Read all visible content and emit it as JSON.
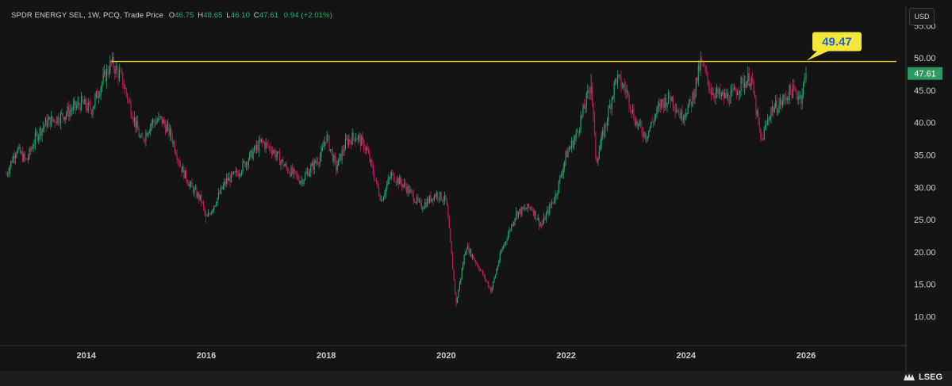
{
  "header": {
    "name": "SPDR ENERGY SEL, 1W, PCQ, Trade Price",
    "open_label": "O",
    "open": "46.75",
    "high_label": "H",
    "high": "48.65",
    "low_label": "L",
    "low": "46.10",
    "close_label": "C",
    "close": "47.61",
    "change": "0.94 (+2.01%)"
  },
  "currency_button": "USD",
  "logo": {
    "name": "LSEG"
  },
  "colors": {
    "up": "#26a269",
    "down": "#c2185b",
    "resistance": "#e8c51f",
    "callout_bg": "#f5e63a",
    "callout_text": "#1f5fd6",
    "last_price_bg": "#2f9a5f"
  },
  "chart_data": {
    "type": "candlestick",
    "interval": "1W",
    "ylim": [
      5.5,
      58
    ],
    "xlim": [
      "2012-09",
      "2027-09"
    ],
    "yticks": [
      "10.00",
      "15.00",
      "20.00",
      "25.00",
      "30.00",
      "35.00",
      "40.00",
      "45.00",
      "50.00",
      "55.00"
    ],
    "xticks": [
      "2014",
      "2016",
      "2018",
      "2020",
      "2022",
      "2024",
      "2026"
    ],
    "resistance": {
      "value": 49.47,
      "label": "49.47",
      "from": "2014-06",
      "to": "2027-09"
    },
    "last_price": {
      "value": 47.61,
      "label": "47.61"
    },
    "grid": false,
    "path": [
      [
        "2012-09",
        32
      ],
      [
        "2012-11",
        36
      ],
      [
        "2013-01",
        34
      ],
      [
        "2013-03",
        38
      ],
      [
        "2013-05",
        40
      ],
      [
        "2013-08",
        41
      ],
      [
        "2013-10",
        42
      ],
      [
        "2013-12",
        43
      ],
      [
        "2014-02",
        42
      ],
      [
        "2014-04",
        46
      ],
      [
        "2014-06",
        49.3
      ],
      [
        "2014-08",
        47
      ],
      [
        "2014-10",
        42
      ],
      [
        "2014-12",
        37
      ],
      [
        "2015-02",
        40
      ],
      [
        "2015-04",
        40.5
      ],
      [
        "2015-06",
        38
      ],
      [
        "2015-08",
        33
      ],
      [
        "2015-10",
        30
      ],
      [
        "2015-12",
        28
      ],
      [
        "2016-01",
        25
      ],
      [
        "2016-03",
        28
      ],
      [
        "2016-05",
        31
      ],
      [
        "2016-07",
        32
      ],
      [
        "2016-09",
        34
      ],
      [
        "2016-12",
        37
      ],
      [
        "2017-02",
        36
      ],
      [
        "2017-05",
        33
      ],
      [
        "2017-08",
        31
      ],
      [
        "2017-10",
        33
      ],
      [
        "2017-12",
        35
      ],
      [
        "2018-01",
        38
      ],
      [
        "2018-03",
        33
      ],
      [
        "2018-05",
        37
      ],
      [
        "2018-07",
        38
      ],
      [
        "2018-09",
        36
      ],
      [
        "2018-12",
        28
      ],
      [
        "2019-02",
        32
      ],
      [
        "2019-05",
        30
      ],
      [
        "2019-08",
        27
      ],
      [
        "2019-11",
        29
      ],
      [
        "2020-01",
        28
      ],
      [
        "2020-03",
        12
      ],
      [
        "2020-05",
        21
      ],
      [
        "2020-08",
        17
      ],
      [
        "2020-10",
        14
      ],
      [
        "2020-12",
        20
      ],
      [
        "2021-03",
        26
      ],
      [
        "2021-06",
        27
      ],
      [
        "2021-08",
        24
      ],
      [
        "2021-11",
        29
      ],
      [
        "2022-01",
        35
      ],
      [
        "2022-03",
        38
      ],
      [
        "2022-06",
        46
      ],
      [
        "2022-07",
        34
      ],
      [
        "2022-09",
        40
      ],
      [
        "2022-11",
        47
      ],
      [
        "2023-01",
        45
      ],
      [
        "2023-03",
        40
      ],
      [
        "2023-05",
        38
      ],
      [
        "2023-08",
        43
      ],
      [
        "2023-10",
        44
      ],
      [
        "2023-12",
        41
      ],
      [
        "2024-02",
        43
      ],
      [
        "2024-04",
        49.4
      ],
      [
        "2024-06",
        45
      ],
      [
        "2024-08",
        44
      ],
      [
        "2024-10",
        44
      ],
      [
        "2024-12",
        46
      ],
      [
        "2025-02",
        47
      ],
      [
        "2025-04",
        37
      ],
      [
        "2025-06",
        42
      ],
      [
        "2025-08",
        43
      ],
      [
        "2025-10",
        45
      ],
      [
        "2025-12",
        44
      ],
      [
        "2026-01",
        47.6
      ]
    ],
    "lows": [
      [
        "2016-01",
        24.5
      ],
      [
        "2020-03",
        11.5
      ],
      [
        "2020-10",
        13.5
      ],
      [
        "2025-04",
        37
      ]
    ],
    "highs": [
      [
        "2014-06",
        49.4
      ],
      [
        "2024-04",
        49.6
      ],
      [
        "2022-06",
        47.5
      ]
    ],
    "final_candle": {
      "open": 46.75,
      "high": 48.65,
      "low": 46.1,
      "close": 47.61
    }
  }
}
